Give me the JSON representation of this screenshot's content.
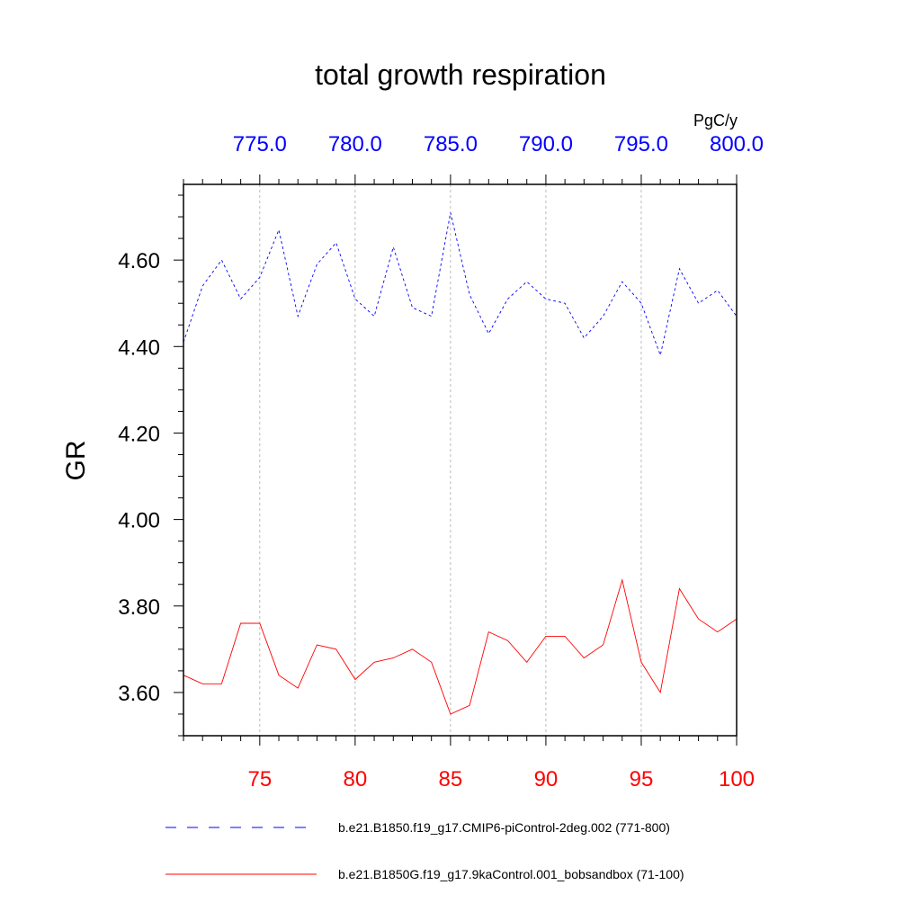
{
  "chart_data": {
    "type": "line",
    "title": "total growth respiration",
    "units": "PgC/y",
    "ylabel": "GR",
    "ylim": [
      3.5,
      4.775
    ],
    "yticks": [
      {
        "value": 3.6,
        "label": "3.60"
      },
      {
        "value": 3.8,
        "label": "3.80"
      },
      {
        "value": 4.0,
        "label": "4.00"
      },
      {
        "value": 4.2,
        "label": "4.20"
      },
      {
        "value": 4.4,
        "label": "4.40"
      },
      {
        "value": 4.6,
        "label": "4.60"
      }
    ],
    "bottom_axis": {
      "color": "#ff0000",
      "range": [
        71,
        100
      ],
      "ticks": [
        {
          "value": 75,
          "label": "75"
        },
        {
          "value": 80,
          "label": "80"
        },
        {
          "value": 85,
          "label": "85"
        },
        {
          "value": 90,
          "label": "90"
        },
        {
          "value": 95,
          "label": "95"
        },
        {
          "value": 100,
          "label": "100"
        }
      ]
    },
    "top_axis": {
      "color": "#0000ff",
      "range": [
        771,
        800
      ],
      "ticks": [
        {
          "value": 775,
          "label": "775.0"
        },
        {
          "value": 780,
          "label": "780.0"
        },
        {
          "value": 785,
          "label": "785.0"
        },
        {
          "value": 790,
          "label": "790.0"
        },
        {
          "value": 795,
          "label": "795.0"
        },
        {
          "value": 800,
          "label": "800.0"
        }
      ]
    },
    "grid": "vertical dashed at major ticks",
    "series": [
      {
        "name": "b.e21.B1850.f19_g17.CMIP6-piControl-2deg.002 (771-800)",
        "color": "#0000ff",
        "dash": "dashed",
        "axis": "top",
        "x": [
          771,
          772,
          773,
          774,
          775,
          776,
          777,
          778,
          779,
          780,
          781,
          782,
          783,
          784,
          785,
          786,
          787,
          788,
          789,
          790,
          791,
          792,
          793,
          794,
          795,
          796,
          797,
          798,
          799,
          800
        ],
        "values": [
          4.41,
          4.54,
          4.6,
          4.51,
          4.56,
          4.67,
          4.47,
          4.59,
          4.64,
          4.51,
          4.47,
          4.63,
          4.49,
          4.47,
          4.71,
          4.52,
          4.43,
          4.51,
          4.55,
          4.51,
          4.5,
          4.42,
          4.47,
          4.55,
          4.5,
          4.38,
          4.58,
          4.5,
          4.53,
          4.47
        ]
      },
      {
        "name": "b.e21.B1850G.f19_g17.9kaControl.001_bobsandbox (71-100)",
        "color": "#ff0000",
        "dash": "solid",
        "axis": "bottom",
        "x": [
          71,
          72,
          73,
          74,
          75,
          76,
          77,
          78,
          79,
          80,
          81,
          82,
          83,
          84,
          85,
          86,
          87,
          88,
          89,
          90,
          91,
          92,
          93,
          94,
          95,
          96,
          97,
          98,
          99,
          100
        ],
        "values": [
          3.64,
          3.62,
          3.62,
          3.76,
          3.76,
          3.64,
          3.61,
          3.71,
          3.7,
          3.63,
          3.67,
          3.68,
          3.7,
          3.67,
          3.55,
          3.57,
          3.74,
          3.72,
          3.67,
          3.73,
          3.73,
          3.68,
          3.71,
          3.86,
          3.67,
          3.6,
          3.84,
          3.77,
          3.74,
          3.77
        ]
      }
    ]
  }
}
